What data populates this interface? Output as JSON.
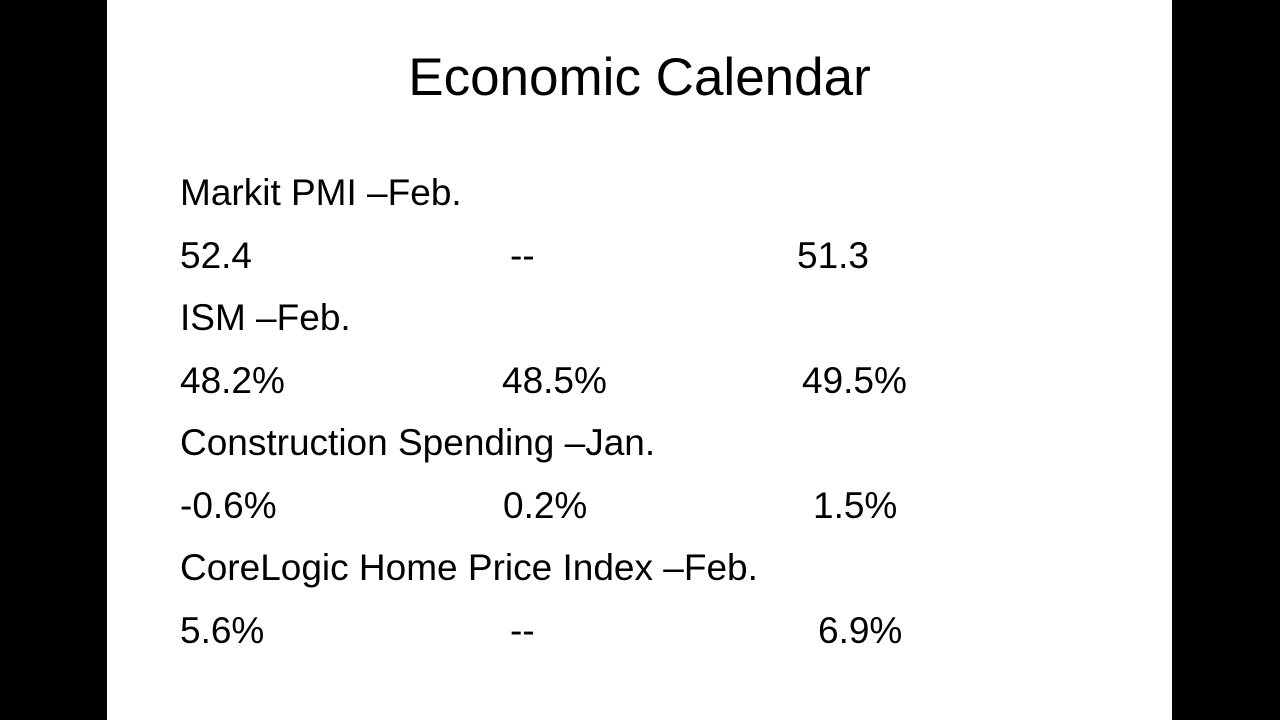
{
  "title": "Economic Calendar",
  "items": [
    {
      "label": "Markit PMI –Feb.",
      "values": [
        "52.4",
        "--",
        "51.3"
      ]
    },
    {
      "label": "ISM –Feb.",
      "values": [
        "48.2%",
        "48.5%",
        "49.5%"
      ]
    },
    {
      "label": "Construction Spending –Jan.",
      "values": [
        "-0.6%",
        "0.2%",
        "1.5%"
      ]
    },
    {
      "label": "CoreLogic Home Price Index –Feb.",
      "values": [
        "5.6%",
        "--",
        "6.9%"
      ]
    }
  ]
}
